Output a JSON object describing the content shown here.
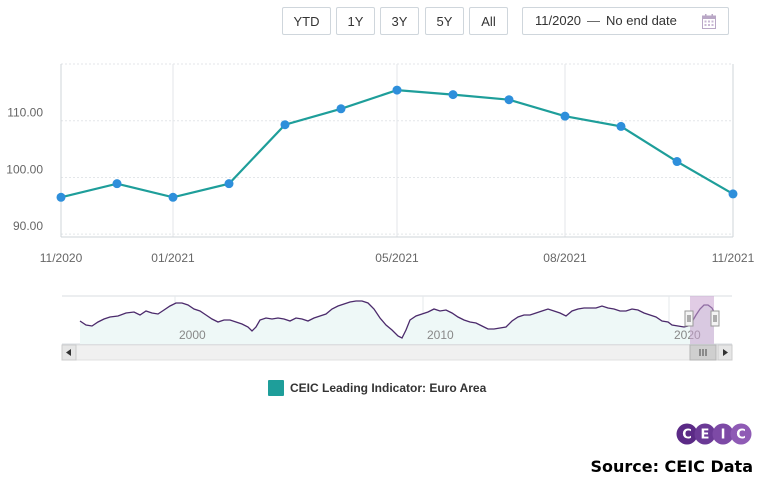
{
  "toolbar": {
    "buttons": [
      {
        "label": "YTD"
      },
      {
        "label": "1Y"
      },
      {
        "label": "3Y"
      },
      {
        "label": "5Y"
      },
      {
        "label": "All"
      }
    ],
    "date_from": "11/2020",
    "date_sep": "—",
    "date_to": "No end date",
    "calendar_icon": "calendar-icon"
  },
  "chart_data": {
    "type": "line",
    "x": [
      "11/2020",
      "12/2020",
      "01/2021",
      "02/2021",
      "03/2021",
      "04/2021",
      "05/2021",
      "06/2021",
      "07/2021",
      "08/2021",
      "09/2021",
      "10/2021",
      "11/2021"
    ],
    "xticks": [
      "11/2020",
      "01/2021",
      "05/2021",
      "08/2021",
      "11/2021"
    ],
    "series": [
      {
        "name": "CEIC Leading Indicator: Euro Area",
        "values": [
          96.5,
          98.9,
          96.5,
          98.9,
          109.3,
          112.1,
          115.4,
          114.6,
          113.7,
          110.8,
          109.0,
          102.8,
          97.1
        ],
        "color": "#1e9e9a"
      }
    ],
    "yticks": [
      90.0,
      100.0,
      110.0
    ],
    "ytick_labels": [
      "90.00",
      "100.00",
      "110.00"
    ],
    "ylim": [
      89.5,
      120
    ],
    "point_color": "#2e8fdb",
    "grid": true,
    "legend": "bottom-center"
  },
  "navigator": {
    "labels": [
      "2000",
      "2010",
      "2020"
    ],
    "line_color": "#4b2a6b",
    "fill_color": "#eef8f7",
    "selection_color": "#c9a3cf"
  },
  "legend": {
    "label": "CEIC Leading Indicator: Euro Area",
    "color": "#1e9e9a"
  },
  "logo": {
    "letters": [
      "C",
      "E",
      "I",
      "C"
    ]
  },
  "source": "Source: CEIC Data"
}
